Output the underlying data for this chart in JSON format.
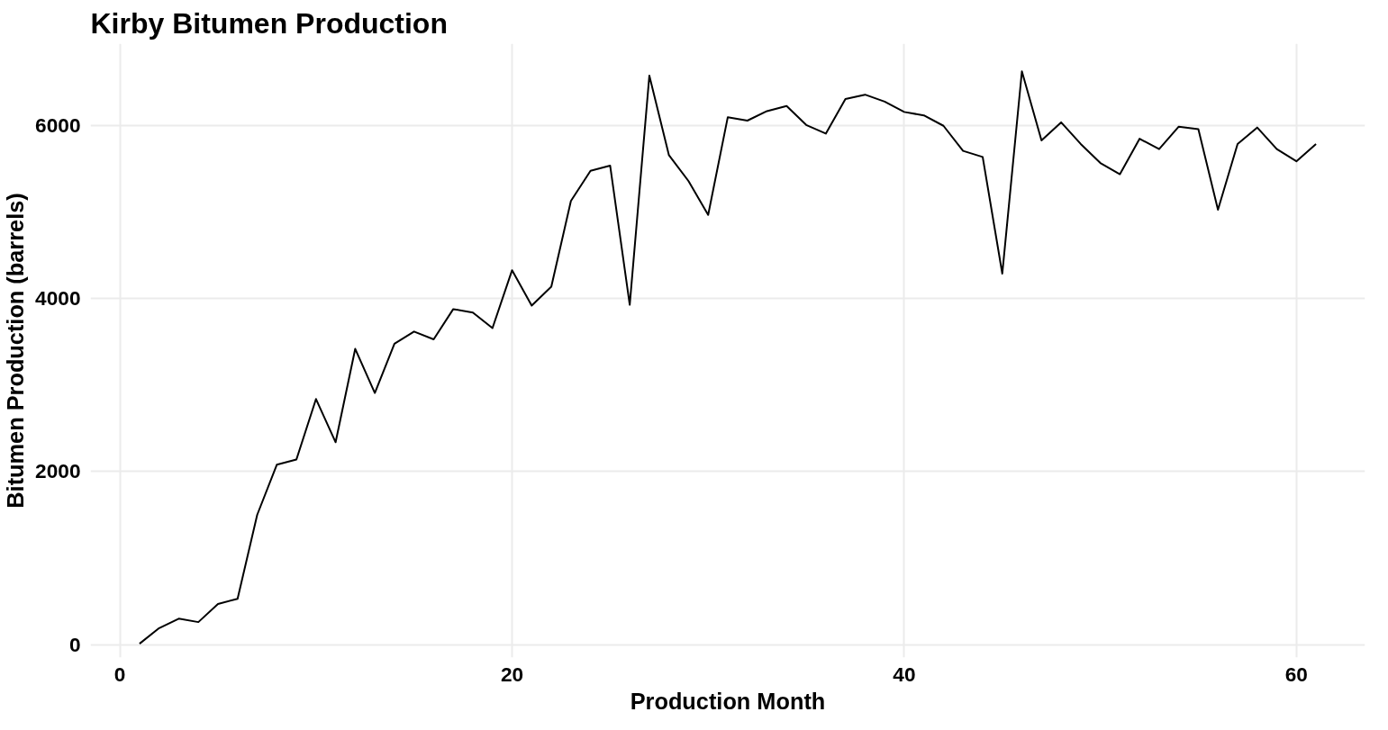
{
  "chart_data": {
    "type": "line",
    "title": "Kirby Bitumen Production",
    "xlabel": "Production Month",
    "ylabel": "Bitumen Production (barrels)",
    "x": [
      1,
      2,
      3,
      4,
      5,
      6,
      7,
      8,
      9,
      10,
      11,
      12,
      13,
      14,
      15,
      16,
      17,
      18,
      19,
      20,
      21,
      22,
      23,
      24,
      25,
      26,
      27,
      28,
      29,
      30,
      31,
      32,
      33,
      34,
      35,
      36,
      37,
      38,
      39,
      40,
      41,
      42,
      43,
      44,
      45,
      46,
      47,
      48,
      49,
      50,
      51,
      52,
      53,
      54,
      55,
      56,
      57,
      58,
      59,
      60,
      61
    ],
    "series": [
      {
        "color": "#000000",
        "values": [
          10,
          190,
          300,
          260,
          470,
          530,
          1500,
          2080,
          2140,
          2840,
          2340,
          3420,
          2910,
          3480,
          3620,
          3530,
          3880,
          3840,
          3660,
          4330,
          3920,
          4140,
          5130,
          5480,
          5540,
          3930,
          6580,
          5660,
          5360,
          4970,
          6100,
          6060,
          6170,
          6230,
          6010,
          5910,
          6310,
          6360,
          6280,
          6160,
          6120,
          6000,
          5710,
          5640,
          4290,
          6630,
          5830,
          6040,
          5790,
          5570,
          5440,
          5850,
          5730,
          5990,
          5960,
          5030,
          5790,
          5980,
          5730,
          5590,
          5790
        ]
      }
    ],
    "xlim": [
      -1.5,
      63.5
    ],
    "ylim": [
      -150,
      6950
    ],
    "xticks": [
      0,
      20,
      40,
      60
    ],
    "yticks": [
      0,
      2000,
      4000,
      6000
    ],
    "grid": true,
    "marker": "none",
    "line_style": "solid"
  }
}
